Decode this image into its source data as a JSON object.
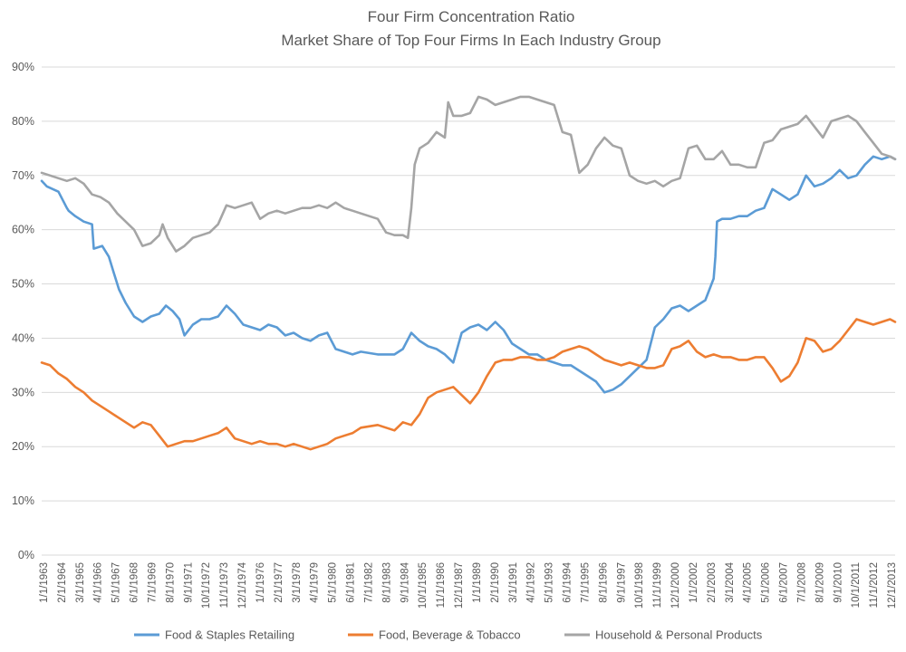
{
  "chart_data": {
    "type": "line",
    "title": "Four Firm Concentration Ratio",
    "subtitle": "Market Share of Top Four Firms In Each Industry Group",
    "xlabel": "",
    "ylabel": "",
    "ylim": [
      0,
      0.9
    ],
    "yticks": [
      "0%",
      "10%",
      "20%",
      "30%",
      "40%",
      "50%",
      "60%",
      "70%",
      "80%",
      "90%"
    ],
    "xlim": [
      1963.0,
      2013.8
    ],
    "xticks": [
      "1/1/1963",
      "2/1/1964",
      "3/1/1965",
      "4/1/1966",
      "5/1/1967",
      "6/1/1968",
      "7/1/1969",
      "8/1/1970",
      "9/1/1971",
      "10/1/1972",
      "11/1/1973",
      "12/1/1974",
      "1/1/1976",
      "2/1/1977",
      "3/1/1978",
      "4/1/1979",
      "5/1/1980",
      "6/1/1981",
      "7/1/1982",
      "8/1/1983",
      "9/1/1984",
      "10/1/1985",
      "11/1/1986",
      "12/1/1987",
      "1/1/1989",
      "2/1/1990",
      "3/1/1991",
      "4/1/1992",
      "5/1/1993",
      "6/1/1994",
      "7/1/1995",
      "8/1/1996",
      "9/1/1997",
      "10/1/1998",
      "11/1/1999",
      "12/1/2000",
      "1/1/2002",
      "2/1/2003",
      "3/1/2004",
      "4/1/2005",
      "5/1/2006",
      "6/1/2007",
      "7/1/2008",
      "8/1/2009",
      "9/1/2010",
      "10/1/2011",
      "11/1/2012",
      "12/1/2013"
    ],
    "grid": true,
    "legend_position": "bottom",
    "series": [
      {
        "name": "Food & Staples Retailing",
        "color": "#5b9bd5",
        "x": [
          1963.0,
          1963.3,
          1964.0,
          1964.5,
          1964.6,
          1965.0,
          1965.5,
          1966.0,
          1966.1,
          1966.6,
          1967.0,
          1967.3,
          1967.6,
          1968.0,
          1968.5,
          1969.0,
          1969.5,
          1970.0,
          1970.4,
          1970.8,
          1971.2,
          1971.5,
          1972.0,
          1972.5,
          1973.0,
          1973.5,
          1974.0,
          1974.5,
          1975.0,
          1975.5,
          1976.0,
          1976.5,
          1977.0,
          1977.5,
          1978.0,
          1978.5,
          1979.0,
          1979.5,
          1980.0,
          1980.5,
          1981.0,
          1981.5,
          1982.0,
          1983.0,
          1984.0,
          1984.5,
          1985.0,
          1985.5,
          1986.0,
          1986.5,
          1987.0,
          1987.5,
          1988.0,
          1988.5,
          1989.0,
          1989.5,
          1990.0,
          1990.5,
          1991.0,
          1991.5,
          1992.0,
          1992.5,
          1993.0,
          1994.0,
          1994.5,
          1995.0,
          1995.5,
          1996.0,
          1996.5,
          1997.0,
          1997.5,
          1998.0,
          1998.5,
          1999.0,
          1999.5,
          2000.0,
          2000.5,
          2001.0,
          2001.5,
          2002.0,
          2002.5,
          2003.0,
          2003.1,
          2003.2,
          2003.5,
          2004.0,
          2004.5,
          2005.0,
          2005.5,
          2006.0,
          2006.5,
          2007.0,
          2007.5,
          2008.0,
          2008.5,
          2009.0,
          2009.5,
          2010.0,
          2010.5,
          2011.0,
          2011.5,
          2012.0,
          2012.5,
          2013.0,
          2013.5,
          2013.8
        ],
        "values": [
          0.69,
          0.68,
          0.67,
          0.64,
          0.635,
          0.625,
          0.615,
          0.61,
          0.565,
          0.57,
          0.55,
          0.52,
          0.49,
          0.465,
          0.44,
          0.43,
          0.44,
          0.445,
          0.46,
          0.45,
          0.435,
          0.405,
          0.425,
          0.435,
          0.435,
          0.44,
          0.46,
          0.445,
          0.425,
          0.42,
          0.415,
          0.425,
          0.42,
          0.405,
          0.41,
          0.4,
          0.395,
          0.405,
          0.41,
          0.38,
          0.375,
          0.37,
          0.375,
          0.37,
          0.37,
          0.38,
          0.41,
          0.395,
          0.385,
          0.38,
          0.37,
          0.355,
          0.41,
          0.42,
          0.425,
          0.415,
          0.43,
          0.415,
          0.39,
          0.38,
          0.37,
          0.37,
          0.36,
          0.35,
          0.35,
          0.34,
          0.33,
          0.32,
          0.3,
          0.305,
          0.315,
          0.33,
          0.345,
          0.36,
          0.42,
          0.435,
          0.455,
          0.46,
          0.45,
          0.46,
          0.47,
          0.51,
          0.55,
          0.615,
          0.62,
          0.62,
          0.625,
          0.625,
          0.635,
          0.64,
          0.675,
          0.665,
          0.655,
          0.665,
          0.7,
          0.68,
          0.685,
          0.695,
          0.71,
          0.695,
          0.7,
          0.72,
          0.735,
          0.73,
          0.735,
          0.73
        ]
      },
      {
        "name": "Food, Beverage & Tobacco",
        "color": "#ed7d31",
        "x": [
          1963.0,
          1963.5,
          1964.0,
          1964.5,
          1965.0,
          1965.5,
          1966.0,
          1966.5,
          1967.0,
          1967.5,
          1968.0,
          1968.5,
          1969.0,
          1969.5,
          1970.0,
          1970.5,
          1971.0,
          1971.5,
          1972.0,
          1972.5,
          1973.0,
          1973.5,
          1974.0,
          1974.5,
          1975.0,
          1975.5,
          1976.0,
          1976.5,
          1977.0,
          1977.5,
          1978.0,
          1978.5,
          1979.0,
          1979.5,
          1980.0,
          1980.5,
          1981.0,
          1981.5,
          1982.0,
          1983.0,
          1984.0,
          1984.5,
          1985.0,
          1985.5,
          1986.0,
          1986.5,
          1987.0,
          1987.5,
          1988.0,
          1988.5,
          1989.0,
          1989.5,
          1990.0,
          1990.5,
          1991.0,
          1991.5,
          1992.0,
          1992.5,
          1993.0,
          1993.5,
          1994.0,
          1994.5,
          1995.0,
          1995.5,
          1996.0,
          1996.5,
          1997.0,
          1997.5,
          1998.0,
          1998.5,
          1999.0,
          1999.5,
          2000.0,
          2000.5,
          2001.0,
          2001.5,
          2002.0,
          2002.5,
          2003.0,
          2003.5,
          2004.0,
          2004.5,
          2005.0,
          2005.5,
          2006.0,
          2006.5,
          2007.0,
          2007.5,
          2008.0,
          2008.5,
          2009.0,
          2009.5,
          2010.0,
          2010.5,
          2011.0,
          2011.5,
          2012.0,
          2012.5,
          2013.0,
          2013.5,
          2013.8
        ],
        "values": [
          0.355,
          0.35,
          0.335,
          0.325,
          0.31,
          0.3,
          0.285,
          0.275,
          0.265,
          0.255,
          0.245,
          0.235,
          0.245,
          0.24,
          0.22,
          0.2,
          0.205,
          0.21,
          0.21,
          0.215,
          0.22,
          0.225,
          0.235,
          0.215,
          0.21,
          0.205,
          0.21,
          0.205,
          0.205,
          0.2,
          0.205,
          0.2,
          0.195,
          0.2,
          0.205,
          0.215,
          0.22,
          0.225,
          0.235,
          0.24,
          0.23,
          0.245,
          0.24,
          0.26,
          0.29,
          0.3,
          0.305,
          0.31,
          0.295,
          0.28,
          0.3,
          0.33,
          0.355,
          0.36,
          0.36,
          0.365,
          0.365,
          0.36,
          0.36,
          0.365,
          0.375,
          0.38,
          0.385,
          0.38,
          0.37,
          0.36,
          0.355,
          0.35,
          0.355,
          0.35,
          0.345,
          0.345,
          0.35,
          0.38,
          0.385,
          0.395,
          0.375,
          0.365,
          0.37,
          0.365,
          0.365,
          0.36,
          0.36,
          0.365,
          0.365,
          0.345,
          0.32,
          0.33,
          0.355,
          0.4,
          0.395,
          0.375,
          0.38,
          0.395,
          0.415,
          0.435,
          0.43,
          0.425,
          0.43,
          0.435,
          0.43
        ]
      },
      {
        "name": "Household & Personal Products",
        "color": "#a5a5a5",
        "x": [
          1963.0,
          1963.5,
          1964.0,
          1964.5,
          1965.0,
          1965.5,
          1966.0,
          1966.5,
          1967.0,
          1967.5,
          1968.0,
          1968.5,
          1969.0,
          1969.5,
          1970.0,
          1970.2,
          1970.5,
          1971.0,
          1971.5,
          1972.0,
          1972.5,
          1973.0,
          1973.5,
          1974.0,
          1974.5,
          1975.0,
          1975.5,
          1976.0,
          1976.5,
          1977.0,
          1977.5,
          1978.0,
          1978.5,
          1979.0,
          1979.5,
          1980.0,
          1980.5,
          1981.0,
          1981.5,
          1982.0,
          1983.0,
          1983.5,
          1984.0,
          1984.5,
          1984.8,
          1985.0,
          1985.2,
          1985.5,
          1986.0,
          1986.5,
          1987.0,
          1987.2,
          1987.5,
          1988.0,
          1988.5,
          1989.0,
          1989.5,
          1990.0,
          1990.5,
          1991.0,
          1991.5,
          1992.0,
          1992.5,
          1993.0,
          1993.5,
          1994.0,
          1994.5,
          1995.0,
          1995.5,
          1996.0,
          1996.5,
          1997.0,
          1997.5,
          1998.0,
          1998.5,
          1999.0,
          1999.5,
          2000.0,
          2000.5,
          2001.0,
          2001.5,
          2002.0,
          2002.5,
          2003.0,
          2003.5,
          2004.0,
          2004.5,
          2005.0,
          2005.5,
          2006.0,
          2006.5,
          2007.0,
          2007.5,
          2008.0,
          2008.5,
          2009.0,
          2009.5,
          2010.0,
          2010.5,
          2011.0,
          2011.5,
          2012.0,
          2012.5,
          2013.0,
          2013.5,
          2013.8
        ],
        "values": [
          0.705,
          0.7,
          0.695,
          0.69,
          0.695,
          0.685,
          0.665,
          0.66,
          0.65,
          0.63,
          0.615,
          0.6,
          0.57,
          0.575,
          0.59,
          0.61,
          0.585,
          0.56,
          0.57,
          0.585,
          0.59,
          0.595,
          0.61,
          0.645,
          0.64,
          0.645,
          0.65,
          0.62,
          0.63,
          0.635,
          0.63,
          0.635,
          0.64,
          0.64,
          0.645,
          0.64,
          0.65,
          0.64,
          0.635,
          0.63,
          0.62,
          0.595,
          0.59,
          0.59,
          0.585,
          0.64,
          0.72,
          0.75,
          0.76,
          0.78,
          0.77,
          0.835,
          0.81,
          0.81,
          0.815,
          0.845,
          0.84,
          0.83,
          0.835,
          0.84,
          0.845,
          0.845,
          0.84,
          0.835,
          0.83,
          0.78,
          0.775,
          0.705,
          0.72,
          0.75,
          0.77,
          0.755,
          0.75,
          0.7,
          0.69,
          0.685,
          0.69,
          0.68,
          0.69,
          0.695,
          0.75,
          0.755,
          0.73,
          0.73,
          0.745,
          0.72,
          0.72,
          0.715,
          0.715,
          0.76,
          0.765,
          0.785,
          0.79,
          0.795,
          0.81,
          0.79,
          0.77,
          0.8,
          0.805,
          0.81,
          0.8,
          0.78,
          0.76,
          0.74,
          0.735,
          0.73
        ]
      }
    ]
  }
}
